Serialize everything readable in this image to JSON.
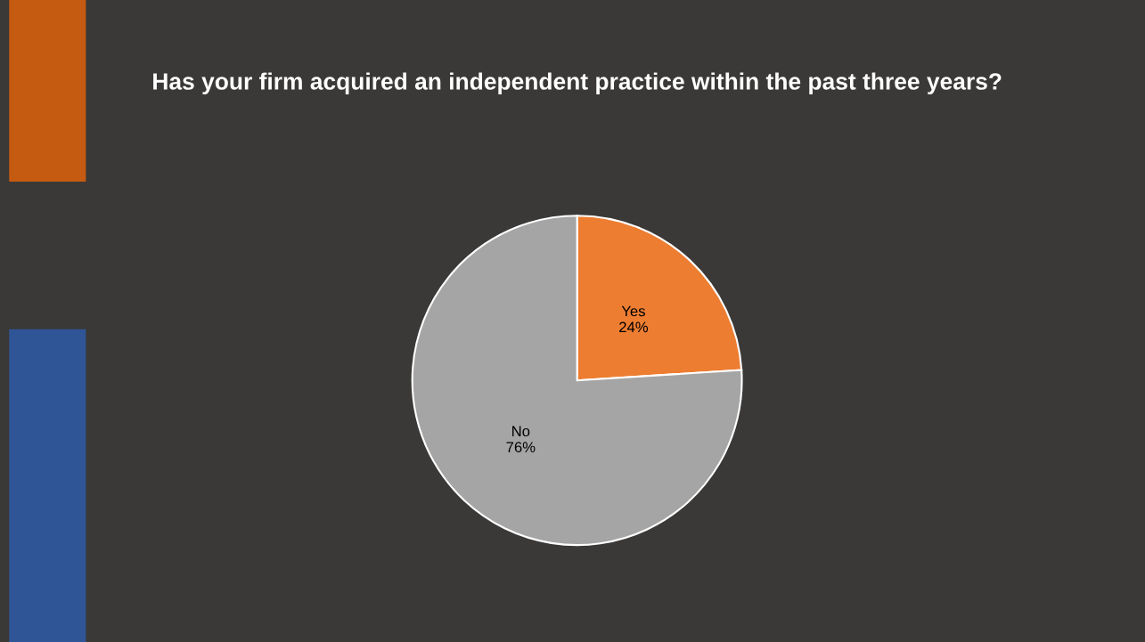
{
  "chart_data": {
    "type": "pie",
    "title": "Has your firm acquired an independent practice within the past three years?",
    "categories": [
      "Yes",
      "No"
    ],
    "values": [
      24,
      76
    ],
    "value_labels": [
      "24%",
      "76%"
    ],
    "colors": [
      "#ed7d31",
      "#a5a5a5"
    ],
    "legend": false
  }
}
